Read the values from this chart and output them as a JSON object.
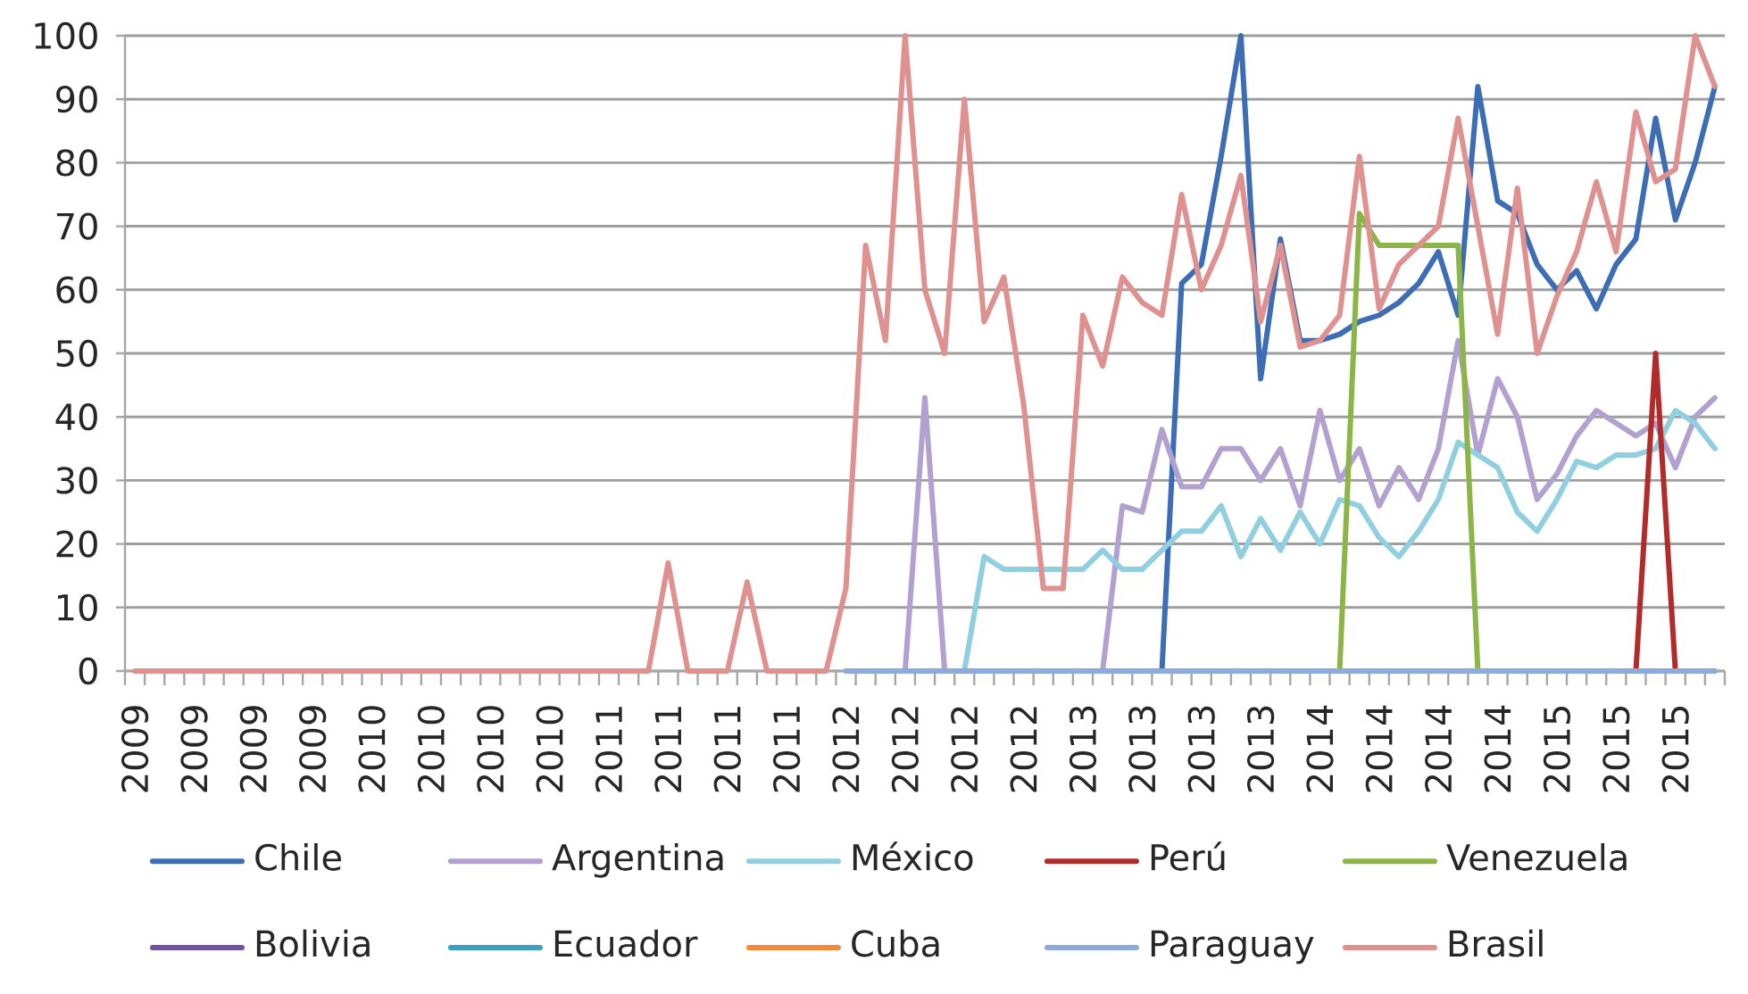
{
  "chart_data": {
    "type": "line",
    "categories": [
      "2009",
      null,
      null,
      "2009",
      null,
      null,
      "2009",
      null,
      null,
      "2009",
      null,
      null,
      "2010",
      null,
      null,
      "2010",
      null,
      null,
      "2010",
      null,
      null,
      "2010",
      null,
      null,
      "2011",
      null,
      null,
      "2011",
      null,
      null,
      "2011",
      null,
      null,
      "2011",
      null,
      null,
      "2012",
      null,
      null,
      "2012",
      null,
      null,
      "2012",
      null,
      null,
      "2012",
      null,
      null,
      "2013",
      null,
      null,
      "2013",
      null,
      null,
      "2013",
      null,
      null,
      "2013",
      null,
      null,
      "2014",
      null,
      null,
      "2014",
      null,
      null,
      "2014",
      null,
      null,
      "2014",
      null,
      null,
      "2015",
      null,
      null,
      "2015",
      null,
      null,
      "2015",
      null,
      null
    ],
    "series": [
      {
        "name": "Chile",
        "color": "#3d6db5",
        "values": [
          null,
          null,
          null,
          null,
          null,
          null,
          null,
          null,
          null,
          null,
          null,
          null,
          null,
          null,
          null,
          null,
          null,
          null,
          null,
          null,
          null,
          null,
          null,
          null,
          null,
          null,
          null,
          null,
          null,
          null,
          null,
          null,
          null,
          null,
          null,
          null,
          null,
          null,
          null,
          null,
          null,
          null,
          null,
          null,
          null,
          null,
          null,
          null,
          null,
          null,
          null,
          null,
          0,
          61,
          64,
          81,
          100,
          46,
          68,
          52,
          52,
          53,
          55,
          56,
          58,
          61,
          66,
          56,
          92,
          74,
          72,
          64,
          60,
          63,
          57,
          64,
          68,
          87,
          71,
          80,
          92
        ]
      },
      {
        "name": "Argentina",
        "color": "#b1a0d0",
        "values": [
          null,
          null,
          null,
          null,
          null,
          null,
          null,
          null,
          null,
          null,
          null,
          null,
          null,
          null,
          null,
          null,
          null,
          null,
          null,
          null,
          null,
          null,
          null,
          null,
          null,
          null,
          null,
          null,
          null,
          null,
          null,
          null,
          null,
          null,
          null,
          null,
          null,
          null,
          null,
          0,
          43,
          0,
          null,
          null,
          null,
          null,
          null,
          null,
          null,
          0,
          26,
          25,
          38,
          29,
          29,
          35,
          35,
          30,
          35,
          26,
          41,
          30,
          35,
          26,
          32,
          27,
          35,
          52,
          34,
          46,
          40,
          27,
          31,
          37,
          41,
          39,
          37,
          39,
          32,
          40,
          43
        ]
      },
      {
        "name": "México",
        "color": "#8fcfe0",
        "values": [
          null,
          null,
          null,
          null,
          null,
          null,
          null,
          null,
          null,
          null,
          null,
          null,
          null,
          null,
          null,
          null,
          null,
          null,
          null,
          null,
          null,
          null,
          null,
          null,
          null,
          null,
          null,
          null,
          null,
          null,
          null,
          null,
          null,
          null,
          null,
          null,
          null,
          null,
          null,
          null,
          null,
          null,
          0,
          18,
          16,
          16,
          16,
          16,
          16,
          19,
          16,
          16,
          19,
          22,
          22,
          26,
          18,
          24,
          19,
          25,
          20,
          27,
          26,
          21,
          18,
          22,
          27,
          36,
          34,
          32,
          25,
          22,
          27,
          33,
          32,
          34,
          34,
          35,
          41,
          39,
          35
        ]
      },
      {
        "name": "Perú",
        "color": "#b22b2b",
        "values": [
          null,
          null,
          null,
          null,
          null,
          null,
          null,
          null,
          null,
          null,
          null,
          null,
          null,
          null,
          null,
          null,
          null,
          null,
          null,
          null,
          null,
          null,
          null,
          null,
          null,
          null,
          null,
          null,
          null,
          null,
          null,
          null,
          null,
          null,
          null,
          null,
          null,
          null,
          null,
          null,
          null,
          null,
          null,
          null,
          null,
          null,
          null,
          null,
          null,
          null,
          null,
          null,
          null,
          null,
          null,
          null,
          null,
          null,
          null,
          null,
          null,
          null,
          null,
          null,
          null,
          null,
          null,
          null,
          null,
          null,
          null,
          null,
          null,
          null,
          null,
          null,
          0,
          50,
          0,
          null,
          null
        ]
      },
      {
        "name": "Venezuela",
        "color": "#8cb548",
        "values": [
          null,
          null,
          null,
          null,
          null,
          null,
          null,
          null,
          null,
          null,
          null,
          null,
          null,
          null,
          null,
          null,
          null,
          null,
          null,
          null,
          null,
          null,
          null,
          null,
          null,
          null,
          null,
          null,
          null,
          null,
          null,
          null,
          null,
          null,
          null,
          null,
          null,
          null,
          null,
          null,
          null,
          null,
          null,
          null,
          null,
          null,
          null,
          null,
          null,
          null,
          null,
          null,
          null,
          null,
          null,
          null,
          null,
          null,
          null,
          null,
          null,
          0,
          72,
          67,
          67,
          67,
          67,
          67,
          0,
          null,
          null,
          null,
          null,
          null,
          null,
          null,
          null,
          null,
          null,
          null,
          null
        ]
      },
      {
        "name": "Bolivia",
        "color": "#6f52a0",
        "values": [
          null,
          null,
          null,
          null,
          null,
          null,
          null,
          null,
          null,
          null,
          null,
          null,
          null,
          null,
          null,
          null,
          null,
          null,
          null,
          null,
          null,
          null,
          null,
          null,
          null,
          null,
          null,
          null,
          null,
          null,
          null,
          null,
          null,
          null,
          null,
          null,
          null,
          null,
          null,
          null,
          null,
          null,
          null,
          null,
          null,
          null,
          null,
          null,
          null,
          null,
          null,
          null,
          null,
          null,
          null,
          null,
          null,
          null,
          null,
          null,
          null,
          null,
          null,
          null,
          null,
          null,
          null,
          null,
          null,
          null,
          null,
          null,
          null,
          null,
          null,
          null,
          null,
          null,
          null,
          null,
          null
        ]
      },
      {
        "name": "Ecuador",
        "color": "#3c9fbd",
        "values": [
          null,
          null,
          null,
          null,
          null,
          null,
          null,
          null,
          null,
          null,
          null,
          null,
          null,
          null,
          null,
          null,
          null,
          null,
          null,
          null,
          null,
          null,
          null,
          null,
          null,
          null,
          null,
          null,
          null,
          null,
          null,
          null,
          null,
          null,
          null,
          null,
          null,
          null,
          null,
          null,
          null,
          null,
          null,
          null,
          null,
          null,
          null,
          null,
          null,
          null,
          null,
          null,
          null,
          null,
          null,
          null,
          null,
          null,
          null,
          null,
          null,
          null,
          null,
          null,
          null,
          null,
          null,
          null,
          null,
          null,
          null,
          null,
          null,
          null,
          null,
          null,
          null,
          null,
          null,
          null,
          null
        ]
      },
      {
        "name": "Cuba",
        "color": "#f08b3d",
        "values": [
          null,
          null,
          null,
          null,
          null,
          null,
          null,
          null,
          null,
          null,
          null,
          null,
          null,
          null,
          null,
          null,
          null,
          null,
          null,
          null,
          null,
          null,
          null,
          null,
          null,
          null,
          null,
          null,
          null,
          null,
          null,
          null,
          null,
          null,
          null,
          null,
          null,
          null,
          null,
          null,
          null,
          null,
          null,
          null,
          null,
          null,
          null,
          null,
          null,
          null,
          null,
          null,
          null,
          null,
          null,
          null,
          null,
          null,
          null,
          null,
          null,
          null,
          null,
          null,
          null,
          null,
          null,
          null,
          null,
          null,
          null,
          null,
          null,
          null,
          null,
          null,
          null,
          null,
          null,
          null,
          null
        ]
      },
      {
        "name": "Paraguay",
        "color": "#8eaadb",
        "values": [
          null,
          null,
          null,
          null,
          null,
          null,
          null,
          null,
          null,
          null,
          null,
          null,
          null,
          null,
          null,
          null,
          null,
          null,
          null,
          null,
          null,
          null,
          null,
          null,
          null,
          null,
          null,
          null,
          null,
          null,
          null,
          null,
          null,
          null,
          null,
          null,
          0,
          0,
          0,
          0,
          0,
          0,
          0,
          0,
          0,
          0,
          0,
          0,
          0,
          0,
          0,
          0,
          0,
          0,
          0,
          0,
          0,
          0,
          0,
          0,
          0,
          0,
          0,
          0,
          0,
          0,
          0,
          0,
          0,
          0,
          0,
          0,
          0,
          0,
          0,
          0,
          0,
          0,
          0,
          0,
          0
        ]
      },
      {
        "name": "Brasil",
        "color": "#df918f",
        "values": [
          0,
          0,
          0,
          0,
          0,
          0,
          0,
          0,
          0,
          0,
          0,
          0,
          0,
          0,
          0,
          0,
          0,
          0,
          0,
          0,
          0,
          0,
          0,
          0,
          0,
          0,
          0,
          17,
          0,
          0,
          0,
          14,
          0,
          0,
          0,
          0,
          13,
          67,
          52,
          100,
          60,
          50,
          90,
          55,
          62,
          42,
          13,
          13,
          56,
          48,
          62,
          58,
          56,
          75,
          60,
          67,
          78,
          55,
          67,
          51,
          52,
          56,
          81,
          57,
          64,
          67,
          70,
          87,
          70,
          53,
          76,
          50,
          59,
          66,
          77,
          66,
          88,
          77,
          79,
          100,
          92
        ]
      }
    ],
    "ylim": [
      0,
      100
    ],
    "yticks": [
      0,
      10,
      20,
      30,
      40,
      50,
      60,
      70,
      80,
      90,
      100
    ],
    "grid": "y",
    "legend": "bottom"
  }
}
